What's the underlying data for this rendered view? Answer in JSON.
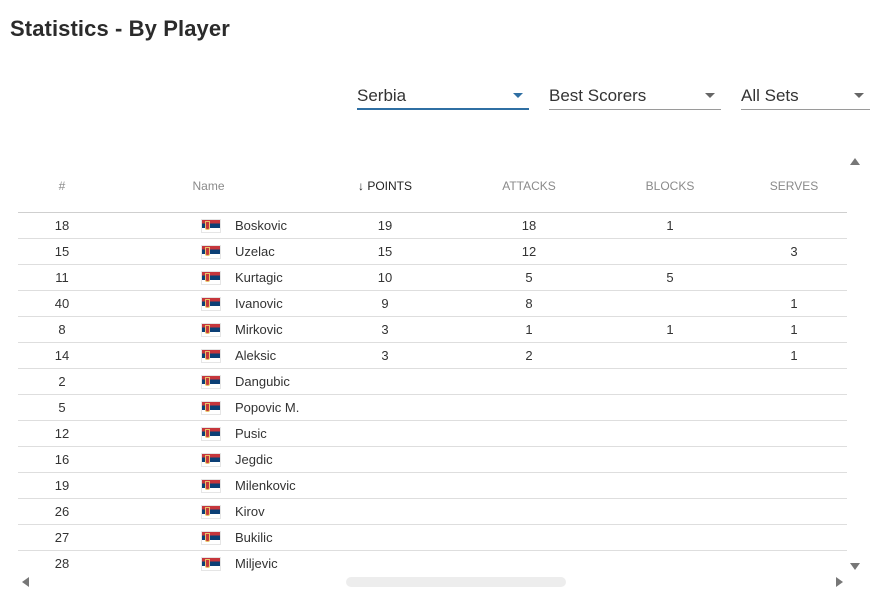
{
  "header": {
    "title": "Statistics - By Player"
  },
  "filters": {
    "team": "Serbia",
    "category": "Best Scorers",
    "sets": "All Sets"
  },
  "colors": {
    "accent": "#2f6fa3"
  },
  "table": {
    "columns": {
      "number": "#",
      "name": "Name",
      "points": "↓ POINTS",
      "attacks": "ATTACKS",
      "blocks": "BLOCKS",
      "serves": "SERVES"
    },
    "flag_icon": "serbia-flag-icon",
    "rows": [
      {
        "number": "18",
        "name": "Boskovic",
        "points": "19",
        "attacks": "18",
        "blocks": "1",
        "serves": ""
      },
      {
        "number": "15",
        "name": "Uzelac",
        "points": "15",
        "attacks": "12",
        "blocks": "",
        "serves": "3"
      },
      {
        "number": "11",
        "name": "Kurtagic",
        "points": "10",
        "attacks": "5",
        "blocks": "5",
        "serves": ""
      },
      {
        "number": "40",
        "name": "Ivanovic",
        "points": "9",
        "attacks": "8",
        "blocks": "",
        "serves": "1"
      },
      {
        "number": "8",
        "name": "Mirkovic",
        "points": "3",
        "attacks": "1",
        "blocks": "1",
        "serves": "1"
      },
      {
        "number": "14",
        "name": "Aleksic",
        "points": "3",
        "attacks": "2",
        "blocks": "",
        "serves": "1"
      },
      {
        "number": "2",
        "name": "Dangubic",
        "points": "",
        "attacks": "",
        "blocks": "",
        "serves": ""
      },
      {
        "number": "5",
        "name": "Popovic M.",
        "points": "",
        "attacks": "",
        "blocks": "",
        "serves": ""
      },
      {
        "number": "12",
        "name": "Pusic",
        "points": "",
        "attacks": "",
        "blocks": "",
        "serves": ""
      },
      {
        "number": "16",
        "name": "Jegdic",
        "points": "",
        "attacks": "",
        "blocks": "",
        "serves": ""
      },
      {
        "number": "19",
        "name": "Milenkovic",
        "points": "",
        "attacks": "",
        "blocks": "",
        "serves": ""
      },
      {
        "number": "26",
        "name": "Kirov",
        "points": "",
        "attacks": "",
        "blocks": "",
        "serves": ""
      },
      {
        "number": "27",
        "name": "Bukilic",
        "points": "",
        "attacks": "",
        "blocks": "",
        "serves": ""
      },
      {
        "number": "28",
        "name": "Miljevic",
        "points": "",
        "attacks": "",
        "blocks": "",
        "serves": ""
      }
    ]
  }
}
